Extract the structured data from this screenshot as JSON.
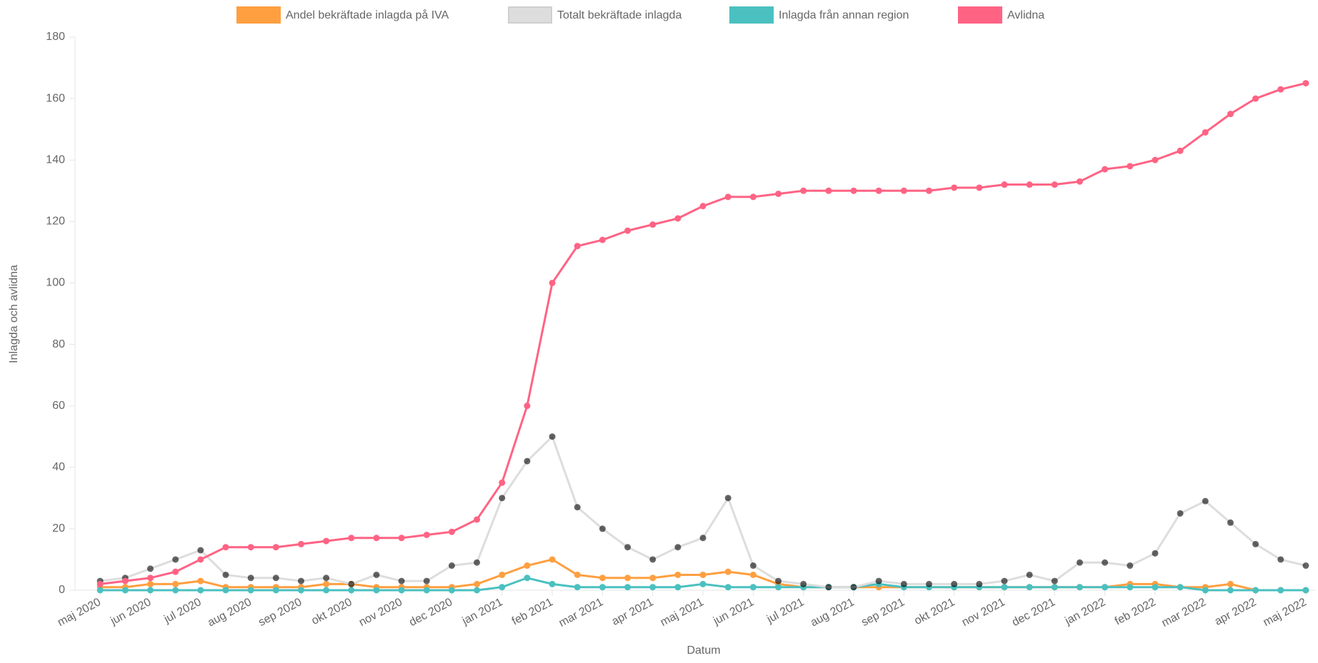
{
  "chart_data": {
    "type": "line",
    "y_label": "Inlagda och avlidna",
    "x_label": "Datum",
    "legend": "top",
    "grid": false,
    "xlim": [
      -0.5,
      24.2
    ],
    "xticks": [
      {
        "value": 0,
        "label": "maj 2020"
      },
      {
        "value": 1,
        "label": "jun 2020"
      },
      {
        "value": 2,
        "label": "jul 2020"
      },
      {
        "value": 3,
        "label": "aug 2020"
      },
      {
        "value": 4,
        "label": "sep 2020"
      },
      {
        "value": 5,
        "label": "okt 2020"
      },
      {
        "value": 6,
        "label": "nov 2020"
      },
      {
        "value": 7,
        "label": "dec 2020"
      },
      {
        "value": 8,
        "label": "jan 2021"
      },
      {
        "value": 9,
        "label": "feb 2021"
      },
      {
        "value": 10,
        "label": "mar 2021"
      },
      {
        "value": 11,
        "label": "apr 2021"
      },
      {
        "value": 12,
        "label": "maj 2021"
      },
      {
        "value": 13,
        "label": "jun 2021"
      },
      {
        "value": 14,
        "label": "jul 2021"
      },
      {
        "value": 15,
        "label": "aug 2021"
      },
      {
        "value": 16,
        "label": "sep 2021"
      },
      {
        "value": 17,
        "label": "okt 2021"
      },
      {
        "value": 18,
        "label": "nov 2021"
      },
      {
        "value": 19,
        "label": "dec 2021"
      },
      {
        "value": 20,
        "label": "jan 2022"
      },
      {
        "value": 21,
        "label": "feb 2022"
      },
      {
        "value": 22,
        "label": "mar 2022"
      },
      {
        "value": 23,
        "label": "apr 2022"
      },
      {
        "value": 24,
        "label": "maj 2022"
      }
    ],
    "ylim": [
      0,
      180
    ],
    "yticks": [
      0,
      20,
      40,
      60,
      80,
      100,
      120,
      140,
      160,
      180
    ],
    "x": [
      0,
      0.5,
      1,
      1.5,
      2,
      2.5,
      3,
      3.5,
      4,
      4.5,
      5,
      5.5,
      6,
      6.5,
      7,
      7.5,
      8,
      8.5,
      9,
      9.5,
      10,
      10.5,
      11,
      11.5,
      12,
      12.5,
      13,
      13.5,
      14,
      14.5,
      15,
      15.5,
      16,
      16.5,
      17,
      17.5,
      18,
      18.5,
      19,
      19.5,
      20,
      20.5,
      21,
      21.5,
      22,
      22.5,
      23,
      23.5,
      24
    ],
    "series": [
      {
        "name": "Andel bekräftade inlagda på IVA",
        "color": "#ff9f40",
        "point_color": "#ff9f40",
        "values": [
          1,
          1,
          2,
          2,
          3,
          1,
          1,
          1,
          1,
          2,
          2,
          1,
          1,
          1,
          1,
          2,
          5,
          8,
          10,
          5,
          4,
          4,
          4,
          5,
          5,
          6,
          5,
          2,
          1,
          1,
          1,
          1,
          1,
          1,
          1,
          1,
          1,
          1,
          1,
          1,
          1,
          2,
          2,
          1,
          1,
          2,
          0,
          0,
          0
        ]
      },
      {
        "name": "Totalt bekräftade inlagda",
        "color": "#dddddd",
        "point_color": "rgba(0,0,0,0.6)",
        "values": [
          3,
          4,
          7,
          10,
          13,
          5,
          4,
          4,
          3,
          4,
          2,
          5,
          3,
          3,
          8,
          9,
          30,
          42,
          50,
          27,
          20,
          14,
          10,
          14,
          17,
          30,
          8,
          3,
          2,
          1,
          1,
          3,
          2,
          2,
          2,
          2,
          3,
          5,
          3,
          9,
          9,
          8,
          12,
          25,
          29,
          22,
          15,
          10,
          8
        ]
      },
      {
        "name": "Inlagda från annan region",
        "color": "#4bc0c0",
        "point_color": "#4bc0c0",
        "values": [
          0,
          0,
          0,
          0,
          0,
          0,
          0,
          0,
          0,
          0,
          0,
          0,
          0,
          0,
          0,
          0,
          1,
          4,
          2,
          1,
          1,
          1,
          1,
          1,
          2,
          1,
          1,
          1,
          1,
          1,
          1,
          2,
          1,
          1,
          1,
          1,
          1,
          1,
          1,
          1,
          1,
          1,
          1,
          1,
          0,
          0,
          0,
          0,
          0
        ]
      },
      {
        "name": "Avlidna",
        "color": "#ff6384",
        "point_color": "#ff6384",
        "values": [
          2,
          3,
          4,
          6,
          10,
          14,
          14,
          14,
          15,
          16,
          17,
          17,
          17,
          18,
          19,
          23,
          35,
          60,
          100,
          112,
          114,
          117,
          119,
          121,
          125,
          128,
          128,
          129,
          130,
          130,
          130,
          130,
          130,
          130,
          131,
          131,
          132,
          132,
          132,
          133,
          137,
          138,
          140,
          143,
          149,
          155,
          160,
          163,
          165
        ]
      }
    ]
  }
}
